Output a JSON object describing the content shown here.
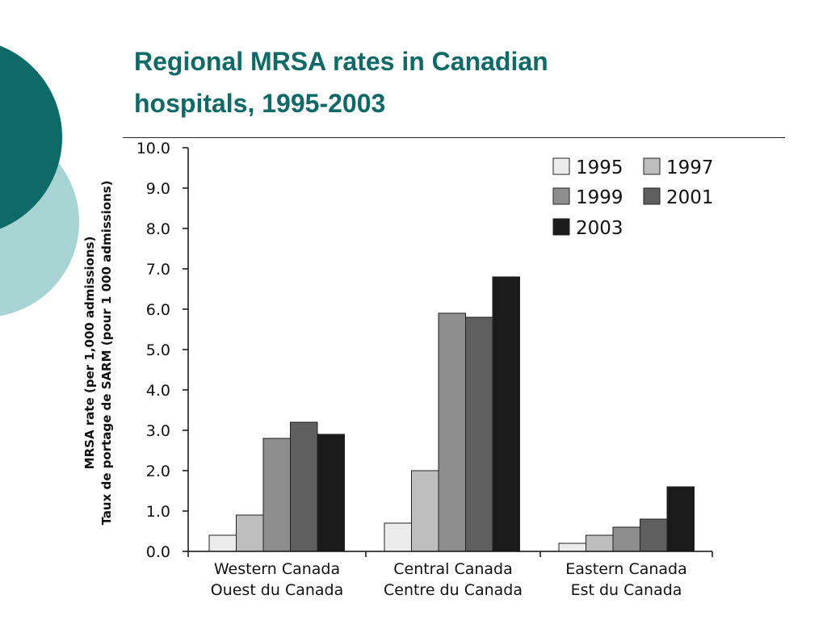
{
  "slide": {
    "title_line1": "Regional MRSA rates in Canadian",
    "title_line2": "hospitals, 1995-2003",
    "colors": {
      "title": "#0d6a66",
      "circle_dark": "#0d6a66",
      "circle_light": "#a8d3d3"
    }
  },
  "chart_data": {
    "type": "bar",
    "title": "",
    "ylabel": [
      "MRSA rate (per 1,000 admissions)",
      "Taux de portage de SARM (pour 1 000 admissions)"
    ],
    "xlabel": "",
    "ylim": [
      0,
      10
    ],
    "yticks": [
      "0.0",
      "1.0",
      "2.0",
      "3.0",
      "4.0",
      "5.0",
      "6.0",
      "7.0",
      "8.0",
      "9.0",
      "10.0"
    ],
    "categories": [
      [
        "Western Canada",
        "Ouest du Canada"
      ],
      [
        "Central Canada",
        "Centre du Canada"
      ],
      [
        "Eastern Canada",
        "Est du Canada"
      ]
    ],
    "series": [
      {
        "name": "1995",
        "color": "#ececec",
        "values": [
          0.4,
          0.7,
          0.2
        ]
      },
      {
        "name": "1997",
        "color": "#bdbdbd",
        "values": [
          0.9,
          2.0,
          0.4
        ]
      },
      {
        "name": "1999",
        "color": "#8d8d8d",
        "values": [
          2.8,
          5.9,
          0.6
        ]
      },
      {
        "name": "2001",
        "color": "#5f5f5f",
        "values": [
          3.2,
          5.8,
          0.8
        ]
      },
      {
        "name": "2003",
        "color": "#1b1b1b",
        "values": [
          2.9,
          6.8,
          1.6
        ]
      }
    ],
    "legend_position": "top-right",
    "grid": false
  }
}
